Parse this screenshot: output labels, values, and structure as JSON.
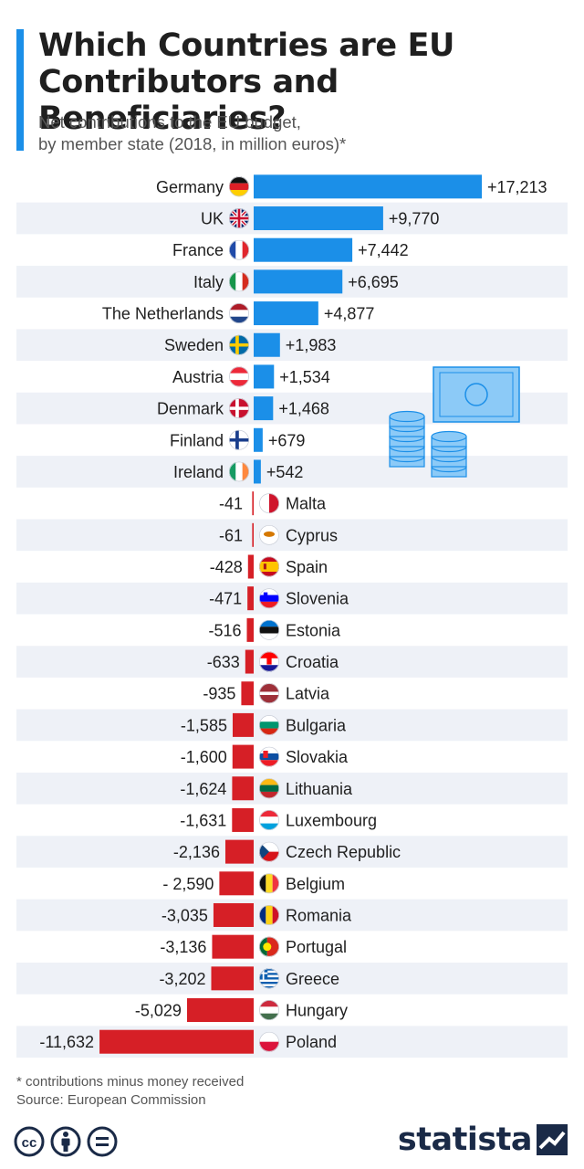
{
  "header": {
    "title_line1": "Which Countries are EU",
    "title_line2": "Contributors and Beneficiaries?",
    "subtitle_line1": "Net contributions to the EU budget,",
    "subtitle_line2": "by member state (2018, in million euros)*"
  },
  "colors": {
    "positive": "#1b8fe8",
    "negative": "#d61f26",
    "accent_bar": "#1b8fe8",
    "row_stripe": "#eef1f7",
    "brand": "#1a2a47"
  },
  "chart_data": {
    "type": "bar",
    "orientation": "horizontal",
    "categories": [
      "Germany",
      "UK",
      "France",
      "Italy",
      "The Netherlands",
      "Sweden",
      "Austria",
      "Denmark",
      "Finland",
      "Ireland",
      "Malta",
      "Cyprus",
      "Spain",
      "Slovenia",
      "Estonia",
      "Croatia",
      "Latvia",
      "Bulgaria",
      "Slovakia",
      "Lithuania",
      "Luxembourg",
      "Czech Republic",
      "Belgium",
      "Romania",
      "Portugal",
      "Greece",
      "Hungary",
      "Poland"
    ],
    "values": [
      17213,
      9770,
      7442,
      6695,
      4877,
      1983,
      1534,
      1468,
      679,
      542,
      -41,
      -61,
      -428,
      -471,
      -516,
      -633,
      -935,
      -1585,
      -1600,
      -1624,
      -1631,
      -2136,
      -2590,
      -3035,
      -3136,
      -3202,
      -5029,
      -11632
    ],
    "value_labels": [
      "+17,213",
      "+9,770",
      "+7,442",
      "+6,695",
      "+4,877",
      "+1,983",
      "+1,534",
      "+1,468",
      "+679",
      "+542",
      "-41",
      "-61",
      "-428",
      "-471",
      "-516",
      "-633",
      "-935",
      "-1,585",
      "-1,600",
      "-1,624",
      "-1,631",
      "-2,136",
      "- 2,590",
      "-3,035",
      "-3,136",
      "-3,202",
      "-5,029",
      "-11,632"
    ],
    "flags": [
      "flag-germany",
      "flag-uk",
      "flag-france",
      "flag-italy",
      "flag-netherlands",
      "flag-sweden",
      "flag-austria",
      "flag-denmark",
      "flag-finland",
      "flag-ireland",
      "flag-malta",
      "flag-cyprus",
      "flag-spain",
      "flag-slovenia",
      "flag-estonia",
      "flag-croatia",
      "flag-latvia",
      "flag-bulgaria",
      "flag-slovakia",
      "flag-lithuania",
      "flag-luxembourg",
      "flag-czech-republic",
      "flag-belgium",
      "flag-romania",
      "flag-portugal",
      "flag-greece",
      "flag-hungary",
      "flag-poland"
    ],
    "xlabel": "",
    "ylabel": "",
    "grid": false,
    "legend": "none"
  },
  "footer": {
    "note": "* contributions minus money received",
    "source": "Source: European Commission"
  },
  "brand": {
    "name": "statista",
    "license_icons": [
      "cc-icon",
      "attribution-icon",
      "no-derivatives-icon"
    ]
  }
}
